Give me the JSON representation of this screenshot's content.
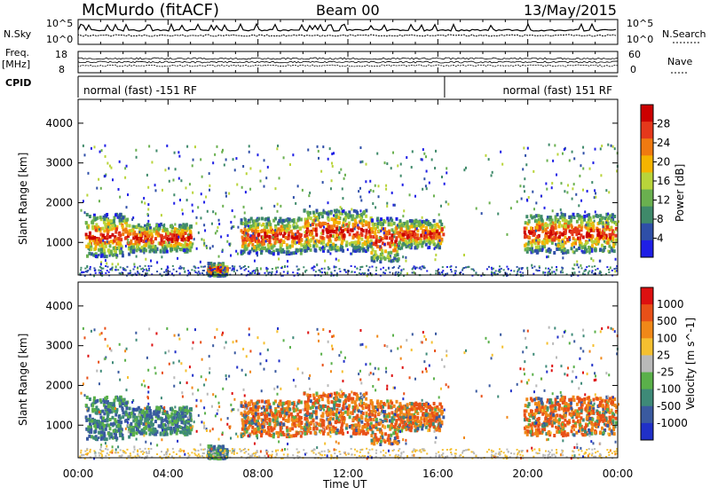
{
  "header": {
    "station": "McMurdo (fitACF)",
    "beam": "Beam 00",
    "date": "13/May/2015"
  },
  "side_labels": {
    "n_sky": "N.Sky",
    "freq": "Freq.",
    "freq_unit": "[MHz]",
    "cpid": "CPID",
    "n_search": "N.Search",
    "nave": "Nave",
    "noise_ticks": [
      "10^5",
      "10^0"
    ],
    "freq_ticks": [
      "18",
      "8"
    ],
    "nave_ticks": [
      "60",
      "0"
    ]
  },
  "cpid_segments": [
    {
      "label": "normal (fast) -151 RF",
      "start_hour": 0,
      "end_hour": 16.3
    },
    {
      "label": "normal (fast) 151 RF",
      "start_hour": 16.3,
      "end_hour": 24
    }
  ],
  "chart_data": [
    {
      "type": "heatmap",
      "title": "Power",
      "ylabel": "Slant Range [km]",
      "xlabel": "",
      "xlim": [
        0,
        24
      ],
      "ylim": [
        180,
        4600
      ],
      "yticks": [
        "1000",
        "2000",
        "3000",
        "4000"
      ],
      "colorbar": {
        "label": "Power [dB]",
        "ticks": [
          "4",
          "8",
          "12",
          "16",
          "20",
          "24",
          "28"
        ],
        "range": [
          0,
          32
        ],
        "colors": [
          "#1f1fe6",
          "#2f4fa8",
          "#3f8a6a",
          "#6ab04f",
          "#b9d43a",
          "#f5b400",
          "#f07a10",
          "#e5381b",
          "#cc0000"
        ]
      }
    },
    {
      "type": "heatmap",
      "title": "Velocity",
      "ylabel": "Slant Range [km]",
      "xlabel": "Time UT",
      "xlim": [
        0,
        24
      ],
      "ylim": [
        180,
        4600
      ],
      "yticks": [
        "1000",
        "2000",
        "3000",
        "4000"
      ],
      "xticks": [
        "00:00",
        "04:00",
        "08:00",
        "12:00",
        "16:00",
        "20:00",
        "00:00"
      ],
      "colorbar": {
        "label": "Velocity [m s^-1]",
        "ticks": [
          "1000",
          "500",
          "100",
          "25",
          "-25",
          "-100",
          "-500",
          "-1000"
        ],
        "colors": [
          "#2030c8",
          "#3a5aa0",
          "#3e8a78",
          "#5ab04a",
          "#b9b9b9",
          "#f5c030",
          "#f08818",
          "#e85018",
          "#dd1010"
        ]
      }
    }
  ],
  "echo_bands": [
    {
      "start": 0.3,
      "end": 2.3,
      "low": 680,
      "high": 1750
    },
    {
      "start": 2.3,
      "end": 5.0,
      "low": 800,
      "high": 1500
    },
    {
      "start": 5.7,
      "end": 6.6,
      "low": 200,
      "high": 520
    },
    {
      "start": 7.2,
      "end": 9.9,
      "low": 750,
      "high": 1650
    },
    {
      "start": 10.0,
      "end": 13.0,
      "low": 820,
      "high": 1850
    },
    {
      "start": 13.0,
      "end": 14.2,
      "low": 550,
      "high": 1650
    },
    {
      "start": 14.2,
      "end": 16.2,
      "low": 900,
      "high": 1600
    },
    {
      "start": 19.8,
      "end": 23.9,
      "low": 780,
      "high": 1750
    }
  ]
}
